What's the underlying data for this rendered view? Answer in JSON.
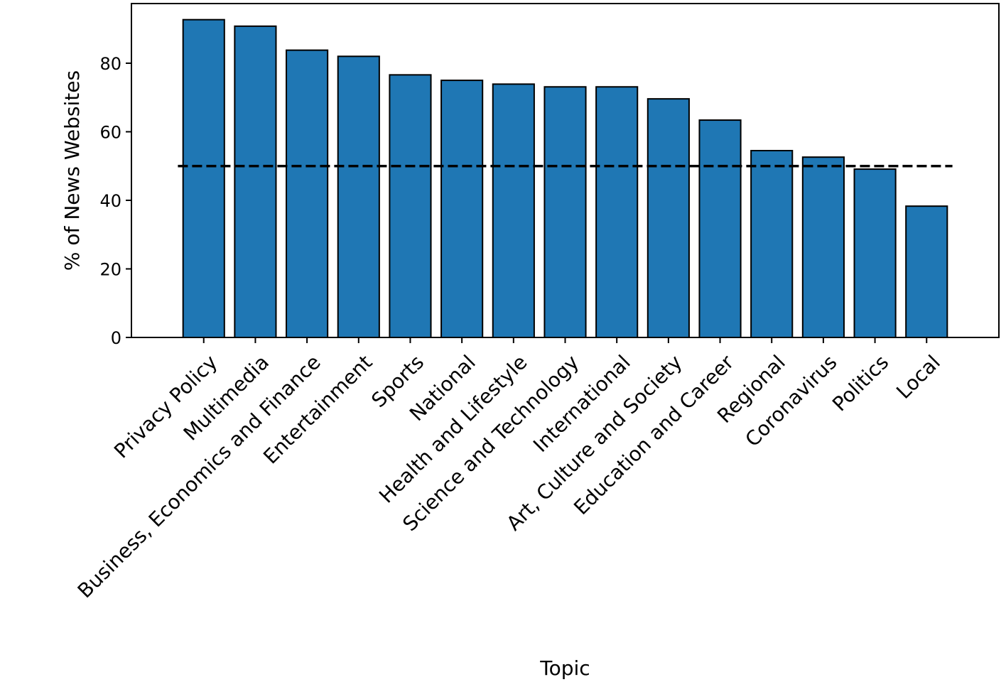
{
  "chart_data": {
    "type": "bar",
    "title": "",
    "xlabel": "Topic",
    "ylabel": "% of News Websites",
    "categories": [
      "Privacy Policy",
      "Multimedia",
      "Business, Economics and Finance",
      "Entertainment",
      "Sports",
      "National",
      "Health and Lifestyle",
      "Science and Technology",
      "International",
      "Art, Culture and Society",
      "Education and Career",
      "Regional",
      "Coronavirus",
      "Politics",
      "Local"
    ],
    "values": [
      92.7,
      90.8,
      83.8,
      82.0,
      76.6,
      75.0,
      73.9,
      73.1,
      73.1,
      69.6,
      63.4,
      54.5,
      52.6,
      49.1,
      38.3
    ],
    "ylim": [
      0,
      97.4
    ],
    "yticks": [
      0,
      20,
      40,
      60,
      80
    ],
    "reference_line": {
      "y": 50,
      "style": "dashed",
      "color": "#000000"
    },
    "grid": false,
    "legend": "none",
    "bar_color": "#1f77b4",
    "edge_color": "#000000"
  }
}
